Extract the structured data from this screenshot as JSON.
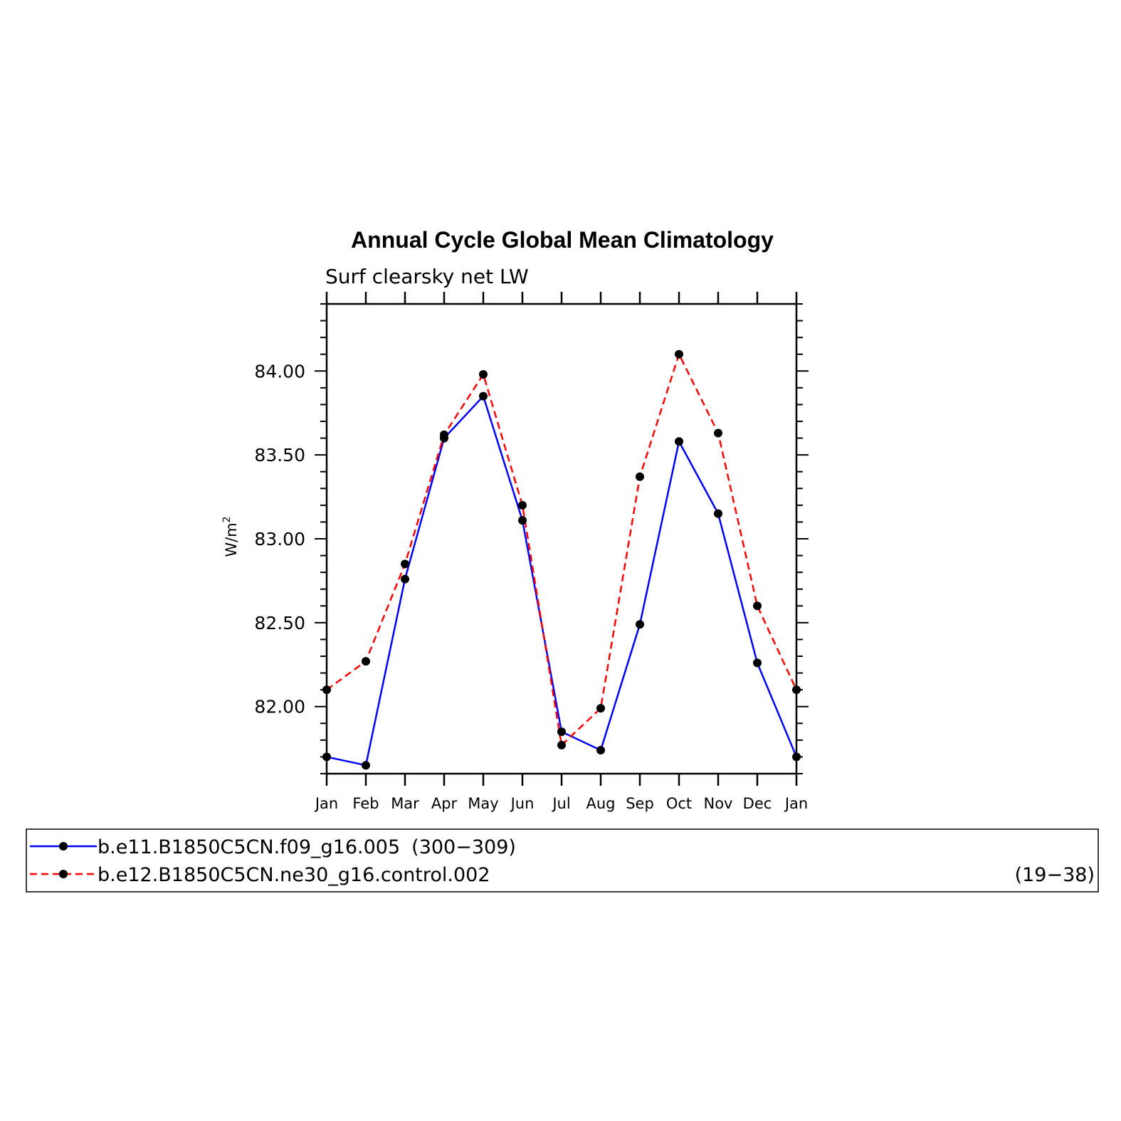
{
  "chart_data": {
    "type": "line",
    "title": "Annual Cycle Global Mean Climatology",
    "subtitle": "Surf clearsky net LW",
    "ylabel": "W/m",
    "ylabel_superscript": "2",
    "categories": [
      "Jan",
      "Feb",
      "Mar",
      "Apr",
      "May",
      "Jun",
      "Jul",
      "Aug",
      "Sep",
      "Oct",
      "Nov",
      "Dec",
      "Jan"
    ],
    "ylim": [
      81.6,
      84.4
    ],
    "yticks": [
      82.0,
      82.5,
      83.0,
      83.5,
      84.0
    ],
    "ytick_labels": [
      "82.00",
      "82.50",
      "83.00",
      "83.50",
      "84.00"
    ],
    "grid": false,
    "legend_position": "bottom",
    "series": [
      {
        "name": "b.e11.B1850C5CN.f09_g16.005",
        "years": "(300−309)",
        "color": "#0000ff",
        "dash": "solid",
        "values": [
          81.7,
          81.65,
          82.76,
          83.6,
          83.85,
          83.11,
          81.85,
          81.74,
          82.49,
          83.58,
          83.15,
          82.26,
          81.7
        ]
      },
      {
        "name": "b.e12.B1850C5CN.ne30_g16.control.002",
        "years": "(19−38)",
        "color": "#ff0000",
        "dash": "dashed",
        "values": [
          82.1,
          82.27,
          82.85,
          83.62,
          83.98,
          83.2,
          81.77,
          81.99,
          83.37,
          84.1,
          83.63,
          82.6,
          82.1
        ]
      }
    ]
  }
}
